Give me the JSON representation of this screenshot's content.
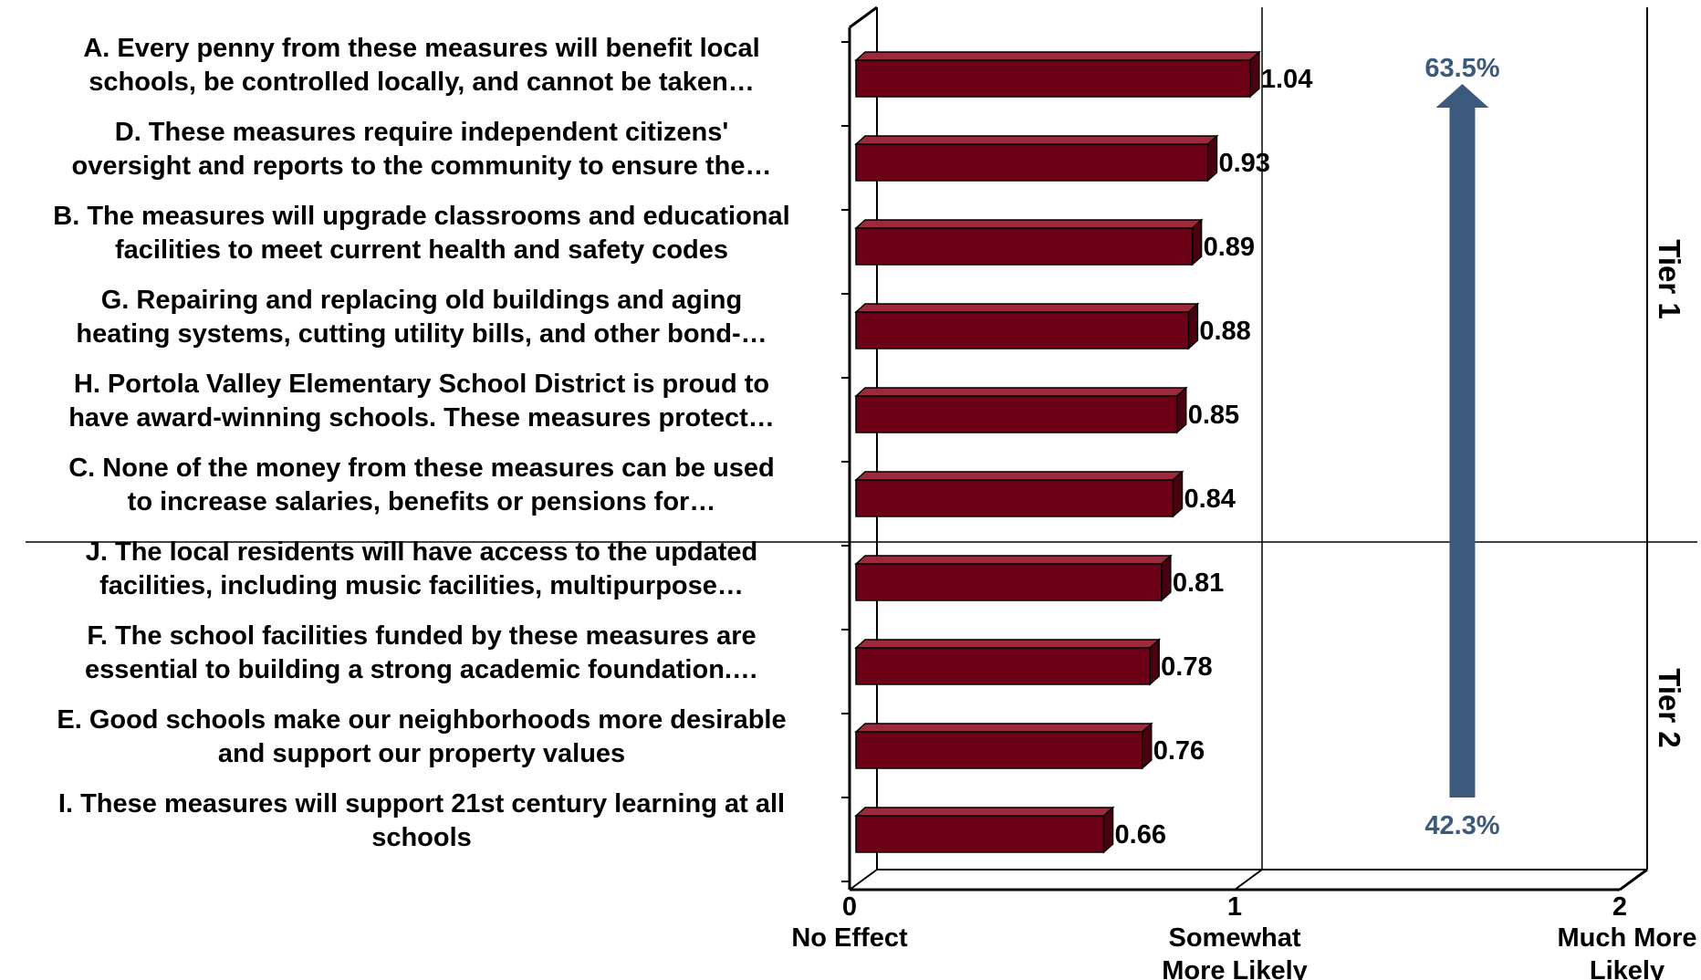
{
  "chart_data": {
    "type": "bar",
    "orientation": "horizontal",
    "categories": [
      [
        "A. Every penny from these measures will benefit local",
        "schools, be controlled locally, and cannot be taken…"
      ],
      [
        "D. These measures require independent citizens'",
        "oversight and reports to the community to ensure the…"
      ],
      [
        "B. The measures will upgrade classrooms and educational",
        "facilities to meet current health and safety codes"
      ],
      [
        "G. Repairing and replacing old buildings and aging",
        "heating systems, cutting utility bills, and other bond-…"
      ],
      [
        "H. Portola Valley Elementary School District is proud to",
        "have award-winning schools. These measures protect…"
      ],
      [
        "C. None of the money from these measures can be used",
        "to increase salaries, benefits or pensions for…"
      ],
      [
        "J. The local residents will have access to the updated",
        "facilities, including music facilities, multipurpose…"
      ],
      [
        "F. The school facilities funded by these measures are",
        "essential to building a strong academic foundation.…"
      ],
      [
        "E. Good schools make our neighborhoods more desirable",
        "and support our property values"
      ],
      [
        "I. These measures will support 21st century learning at all",
        "schools"
      ]
    ],
    "values": [
      1.04,
      0.93,
      0.89,
      0.88,
      0.85,
      0.84,
      0.81,
      0.78,
      0.76,
      0.66
    ],
    "value_labels": [
      "1.04",
      "0.93",
      "0.89",
      "0.88",
      "0.85",
      "0.84",
      "0.81",
      "0.78",
      "0.76",
      "0.66"
    ],
    "xlim": [
      0,
      2
    ],
    "ticks": [
      {
        "value": 0,
        "number": "0",
        "text": [
          "No Effect"
        ]
      },
      {
        "value": 1,
        "number": "1",
        "text": [
          "Somewhat",
          "More  Likely"
        ]
      },
      {
        "value": 2,
        "number": "2",
        "text": [
          "Much More",
          "Likely"
        ]
      }
    ],
    "groups": [
      {
        "label": "Tier 1",
        "count": 6
      },
      {
        "label": "Tier 2",
        "count": 4
      }
    ],
    "arrow": {
      "x_value": 1.52,
      "top_label": "63.5%",
      "bottom_label": "42.3%"
    },
    "colors": {
      "bar": "#6b0016",
      "bar_top": "#9a2a3c",
      "bar_side": "#4a000f",
      "arrow": "#3c5a7c",
      "axis": "#000000"
    }
  }
}
